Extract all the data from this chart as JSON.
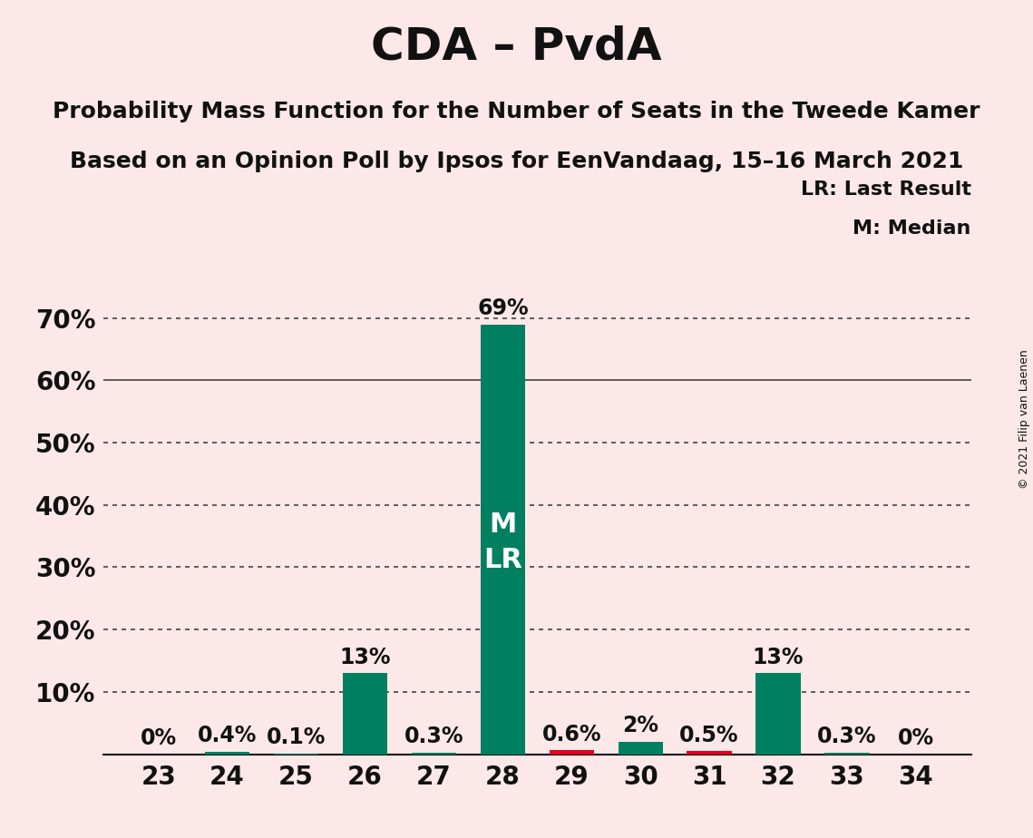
{
  "title": "CDA – PvdA",
  "subtitle1": "Probability Mass Function for the Number of Seats in the Tweede Kamer",
  "subtitle2": "Based on an Opinion Poll by Ipsos for EenVandaag, 15–16 March 2021",
  "copyright": "© 2021 Filip van Laenen",
  "categories": [
    23,
    24,
    25,
    26,
    27,
    28,
    29,
    30,
    31,
    32,
    33,
    34
  ],
  "values": [
    0,
    0.4,
    0.1,
    13,
    0.3,
    69,
    0.6,
    2,
    0.5,
    13,
    0.3,
    0
  ],
  "labels": [
    "0%",
    "0.4%",
    "0.1%",
    "13%",
    "0.3%",
    "69%",
    "0.6%",
    "2%",
    "0.5%",
    "13%",
    "0.3%",
    "0%"
  ],
  "bar_colors": [
    "#008060",
    "#008060",
    "#008060",
    "#008060",
    "#008060",
    "#008060",
    "#e00020",
    "#008060",
    "#e00020",
    "#008060",
    "#008060",
    "#008060"
  ],
  "median_seat": 28,
  "last_result_seat": 28,
  "background_color": "#fce8e8",
  "ylim": [
    0,
    78
  ],
  "yticks": [
    10,
    20,
    30,
    40,
    50,
    60,
    70
  ],
  "ytick_labels": [
    "10%",
    "20%",
    "30%",
    "40%",
    "50%",
    "60%",
    "70%"
  ],
  "legend_lr": "LR: Last Result",
  "legend_m": "M: Median",
  "grid_dotted_levels": [
    10,
    20,
    30,
    40,
    50,
    70
  ],
  "grid_solid_levels": [
    60
  ],
  "title_fontsize": 36,
  "subtitle_fontsize": 18,
  "label_fontsize": 17,
  "tick_fontsize": 20,
  "bar_width": 0.65,
  "mlr_fontsize": 22,
  "legend_fontsize": 16,
  "copyright_fontsize": 9
}
